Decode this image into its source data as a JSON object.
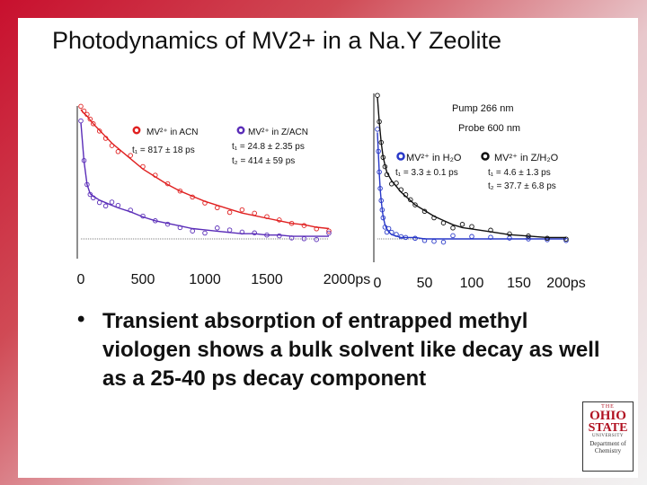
{
  "slide_title": "Photodynamics of MV2+ in a Na.Y Zeolite",
  "bullet": "Transient absorption of entrapped methyl viologen shows a bulk solvent like decay as well as a 25-40 ps decay component",
  "bullet_marker": "•",
  "logo": {
    "top": "THE",
    "line1": "OHIO",
    "line2": "STATE",
    "line3": "UNIVERSITY",
    "line4": "Department of Chemistry"
  },
  "colors": {
    "red": "#e02020",
    "purple": "#5a2db8",
    "blue": "#2838c8",
    "black": "#111111"
  },
  "chart_data": [
    {
      "type": "scatter",
      "title": "",
      "xlabel": "ps",
      "ylabel": "",
      "xlim": [
        0,
        2000
      ],
      "x_ticks": [
        "0",
        "500",
        "1000",
        "1500",
        "2000ps"
      ],
      "series": [
        {
          "name": "MV²⁺ in ACN",
          "color": "#e02020",
          "fit_label": "t₁ = 817 ± 18 ps",
          "x": [
            0,
            25,
            50,
            75,
            100,
            150,
            200,
            250,
            300,
            400,
            500,
            600,
            700,
            800,
            900,
            1000,
            1100,
            1200,
            1300,
            1400,
            1500,
            1600,
            1700,
            1800,
            1900,
            2000
          ],
          "y": [
            1.0,
            0.97,
            0.95,
            0.92,
            0.89,
            0.84,
            0.79,
            0.74,
            0.7,
            0.62,
            0.54,
            0.48,
            0.42,
            0.37,
            0.33,
            0.29,
            0.26,
            0.23,
            0.2,
            0.18,
            0.16,
            0.14,
            0.12,
            0.11,
            0.09,
            0.08
          ]
        },
        {
          "name": "MV²⁺ in Z/ACN",
          "color": "#5a2db8",
          "fit_label_1": "t₁ = 24.8 ± 2.35 ps",
          "fit_label_2": "t₂ = 414 ± 59 ps",
          "x": [
            0,
            25,
            50,
            75,
            100,
            150,
            200,
            250,
            300,
            400,
            500,
            600,
            700,
            800,
            900,
            1000,
            1100,
            1200,
            1300,
            1400,
            1500,
            1600,
            1700,
            1800,
            1900,
            2000
          ],
          "y": [
            0.9,
            0.6,
            0.42,
            0.35,
            0.33,
            0.3,
            0.28,
            0.26,
            0.24,
            0.21,
            0.17,
            0.14,
            0.12,
            0.1,
            0.08,
            0.07,
            0.06,
            0.05,
            0.04,
            0.04,
            0.03,
            0.03,
            0.02,
            0.02,
            0.02,
            0.02
          ]
        }
      ]
    },
    {
      "type": "scatter",
      "title": "",
      "xlabel": "ps",
      "ylabel": "",
      "xlim": [
        0,
        200
      ],
      "x_ticks": [
        "0",
        "50",
        "100",
        "150",
        "200ps"
      ],
      "annotations": [
        "Pump 266 nm",
        "Probe 600 nm"
      ],
      "series": [
        {
          "name": "MV²⁺ in H₂O",
          "color": "#2838c8",
          "fit_label": "t₁ = 3.3 ± 0.1 ps",
          "x": [
            0,
            1,
            2,
            3,
            4,
            5,
            6,
            8,
            10,
            12,
            15,
            20,
            25,
            30,
            40,
            50,
            60,
            70,
            80,
            100,
            120,
            140,
            160,
            180,
            200
          ],
          "y": [
            0.75,
            0.6,
            0.46,
            0.35,
            0.27,
            0.21,
            0.16,
            0.1,
            0.07,
            0.05,
            0.03,
            0.02,
            0.01,
            0.01,
            0.01,
            0.0,
            0.0,
            0.0,
            0.0,
            0.0,
            0.0,
            0.0,
            0.0,
            0.0,
            0.0
          ]
        },
        {
          "name": "MV²⁺ in Z/H₂O",
          "color": "#111111",
          "fit_label_1": "t₁ = 4.6 ± 1.3 ps",
          "fit_label_2": "t₂ = 37.7 ± 6.8 ps",
          "x": [
            0,
            2,
            4,
            6,
            8,
            10,
            15,
            20,
            25,
            30,
            35,
            40,
            50,
            60,
            70,
            80,
            90,
            100,
            120,
            140,
            160,
            180,
            200
          ],
          "y": [
            1.0,
            0.82,
            0.68,
            0.58,
            0.52,
            0.47,
            0.41,
            0.37,
            0.33,
            0.3,
            0.27,
            0.24,
            0.2,
            0.16,
            0.13,
            0.1,
            0.08,
            0.07,
            0.05,
            0.03,
            0.02,
            0.01,
            0.01
          ]
        }
      ]
    }
  ]
}
